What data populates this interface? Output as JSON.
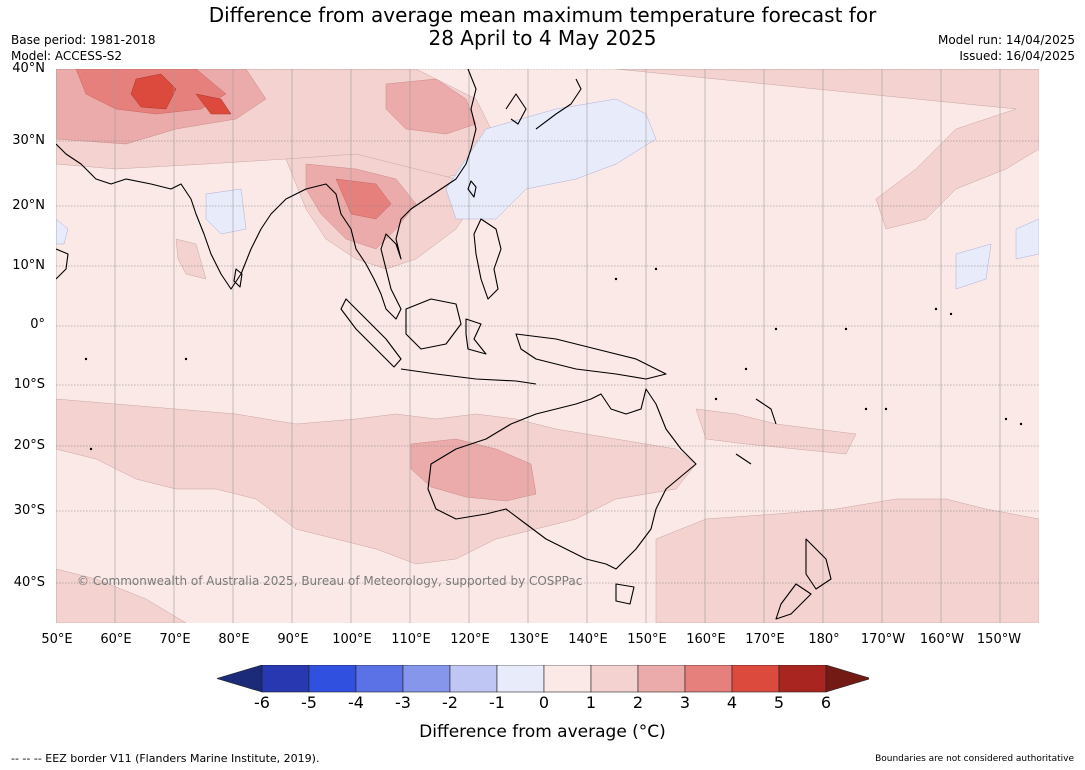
{
  "title": "Difference from average mean maximum temperature forecast for\n28 April to 4 May 2025",
  "meta_left": {
    "base_period": "Base period: 1981-2018",
    "model": "Model: ACCESS-S2"
  },
  "meta_right": {
    "model_run": "Model run: 14/04/2025",
    "issued": "Issued: 16/04/2025"
  },
  "map": {
    "lat_labels": [
      "40°N",
      "30°N",
      "20°N",
      "10°N",
      "0°",
      "10°S",
      "20°S",
      "30°S",
      "40°S"
    ],
    "lon_labels": [
      "50°E",
      "60°E",
      "70°E",
      "80°E",
      "90°E",
      "100°E",
      "110°E",
      "120°E",
      "130°E",
      "140°E",
      "150°E",
      "160°E",
      "170°E",
      "180°",
      "170°W",
      "160°W",
      "150°W"
    ],
    "copyright": "© Commonwealth of Australia 2025, Bureau of Meteorology, supported by COSPPac",
    "background_color": "#fbe9e7"
  },
  "colorbar": {
    "label": "Difference from average (°C)",
    "ticks": [
      "-6",
      "-5",
      "-4",
      "-3",
      "-2",
      "-1",
      "0",
      "1",
      "2",
      "3",
      "4",
      "5",
      "6"
    ],
    "colors": [
      "#1c2a7a",
      "#2738b0",
      "#3050e0",
      "#5a72e6",
      "#8596eb",
      "#bfc6f3",
      "#e8ebfa",
      "#fbe9e7",
      "#f3d2cf",
      "#ecabab",
      "#e6807c",
      "#db4a3d",
      "#a8261f",
      "#731a15"
    ]
  },
  "footer": {
    "left": "--  --  -- EEZ border V11 (Flanders Marine Institute, 2019).",
    "right": "Boundaries are not considered authoritative"
  }
}
